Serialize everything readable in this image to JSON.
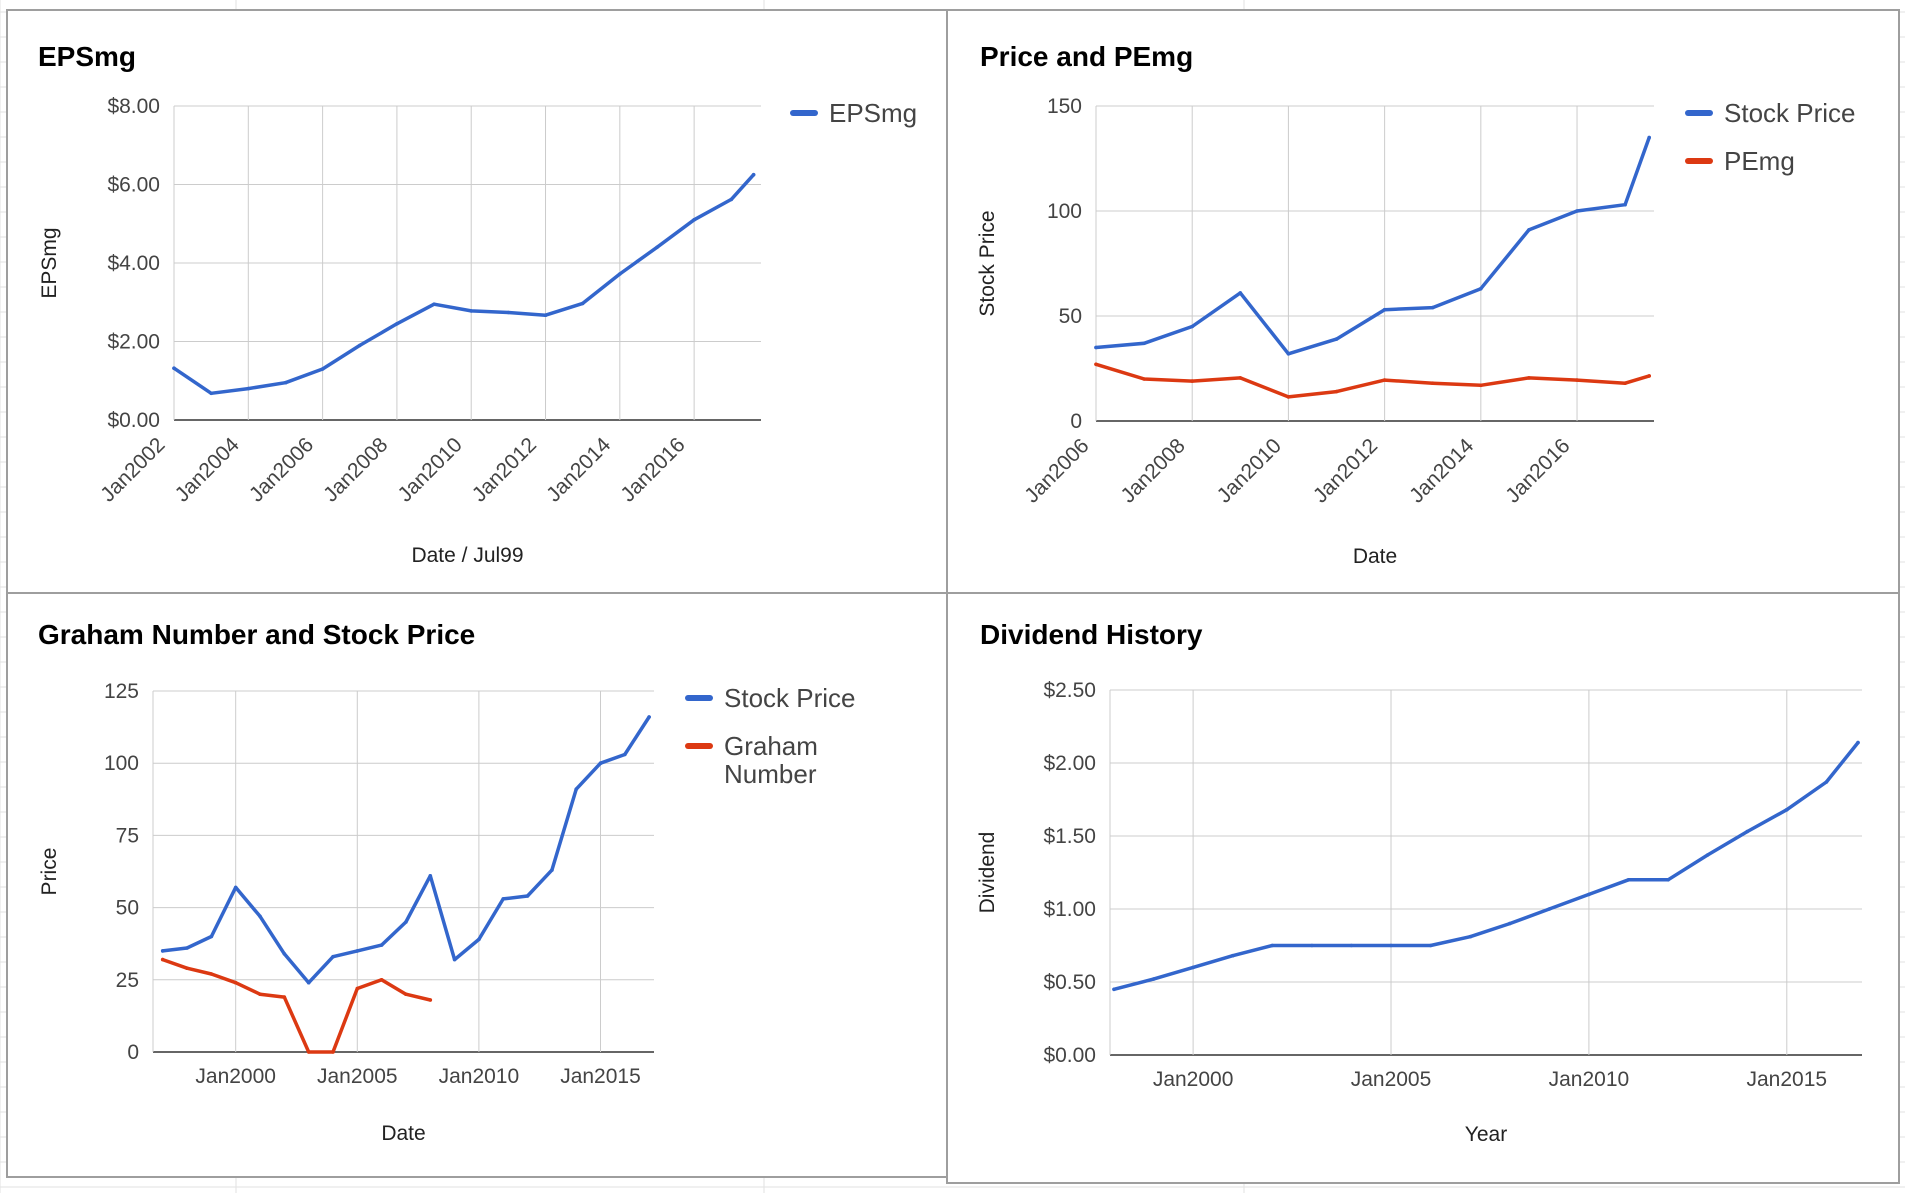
{
  "colors": {
    "blue": "#3366cc",
    "red": "#dc3912",
    "grid": "#cccccc"
  },
  "chart_data": [
    {
      "type": "line",
      "title": "EPSmg",
      "xlabel": "Date / Jul99",
      "ylabel": "EPSmg",
      "x_ticks": [
        "Jan2002",
        "Jan2004",
        "Jan2006",
        "Jan2008",
        "Jan2010",
        "Jan2012",
        "Jan2014",
        "Jan2016"
      ],
      "y_ticks": [
        "$0.00",
        "$2.00",
        "$4.00",
        "$6.00",
        "$8.00"
      ],
      "ylim": [
        0,
        8
      ],
      "xlim": [
        2002,
        2017.8
      ],
      "grid": true,
      "legend_position": "right",
      "series": [
        {
          "name": "EPSmg",
          "color": "#3366cc",
          "x": [
            2002,
            2003,
            2004,
            2005,
            2006,
            2007,
            2008,
            2009,
            2010,
            2011,
            2012,
            2013,
            2014,
            2015,
            2016,
            2017,
            2017.6
          ],
          "values": [
            1.32,
            0.68,
            0.8,
            0.95,
            1.3,
            1.9,
            2.45,
            2.95,
            2.78,
            2.74,
            2.67,
            2.97,
            3.72,
            4.4,
            5.1,
            5.62,
            6.25
          ]
        }
      ]
    },
    {
      "type": "line",
      "title": "Price and PEmg",
      "xlabel": "Date",
      "ylabel": "Stock Price",
      "x_ticks": [
        "Jan2006",
        "Jan2008",
        "Jan2010",
        "Jan2012",
        "Jan2014",
        "Jan2016"
      ],
      "y_ticks": [
        "0",
        "50",
        "100",
        "150"
      ],
      "ylim": [
        0,
        150
      ],
      "xlim": [
        2006,
        2017.6
      ],
      "grid": true,
      "legend_position": "right",
      "series": [
        {
          "name": "Stock Price",
          "color": "#3366cc",
          "x": [
            2006,
            2007,
            2008,
            2009,
            2010,
            2011,
            2012,
            2013,
            2014,
            2015,
            2016,
            2017,
            2017.5
          ],
          "values": [
            35,
            37,
            45,
            61,
            32,
            39,
            53,
            54,
            63,
            91,
            100,
            103,
            135
          ]
        },
        {
          "name": "PEmg",
          "color": "#dc3912",
          "x": [
            2006,
            2007,
            2008,
            2009,
            2010,
            2011,
            2012,
            2013,
            2014,
            2015,
            2016,
            2017,
            2017.5
          ],
          "values": [
            27,
            20,
            19,
            20.5,
            11.5,
            14,
            19.5,
            18,
            17,
            20.5,
            19.5,
            18,
            21.5
          ]
        }
      ]
    },
    {
      "type": "line",
      "title": "Graham Number and Stock Price",
      "xlabel": "Date",
      "ylabel": "Price",
      "x_ticks": [
        "Jan2000",
        "Jan2005",
        "Jan2010",
        "Jan2015"
      ],
      "y_ticks": [
        "0",
        "25",
        "50",
        "75",
        "100",
        "125"
      ],
      "ylim": [
        0,
        125
      ],
      "xlim": [
        1996.6,
        2017.2
      ],
      "grid": true,
      "legend_position": "right",
      "series": [
        {
          "name": "Stock Price",
          "color": "#3366cc",
          "x": [
            1997,
            1998,
            1999,
            2000,
            2001,
            2002,
            2003,
            2004,
            2005,
            2006,
            2007,
            2008,
            2009,
            2010,
            2011,
            2012,
            2013,
            2014,
            2015,
            2016,
            2017
          ],
          "values": [
            35,
            36,
            40,
            57,
            47,
            34,
            24,
            33,
            35,
            37,
            45,
            61,
            32,
            39,
            53,
            54,
            63,
            91,
            100,
            103,
            116
          ]
        },
        {
          "name": "Graham Number",
          "color": "#dc3912",
          "x": [
            1997,
            1998,
            1999,
            2000,
            2001,
            2002,
            2003,
            2004,
            2005,
            2006,
            2007,
            2008
          ],
          "values": [
            32,
            29,
            27,
            24,
            20,
            19,
            0,
            0,
            22,
            25,
            20,
            18
          ]
        }
      ]
    },
    {
      "type": "line",
      "title": "Dividend History",
      "xlabel": "Year",
      "ylabel": "Dividend",
      "x_ticks": [
        "Jan2000",
        "Jan2005",
        "Jan2010",
        "Jan2015"
      ],
      "y_ticks": [
        "$0.00",
        "$0.50",
        "$1.00",
        "$1.50",
        "$2.00",
        "$2.50"
      ],
      "ylim": [
        0,
        2.5
      ],
      "xlim": [
        1997.9,
        2016.9
      ],
      "grid": true,
      "series": [
        {
          "name": "Dividend",
          "color": "#3366cc",
          "x": [
            1998,
            1999,
            2000,
            2001,
            2002,
            2003,
            2004,
            2005,
            2006,
            2007,
            2008,
            2009,
            2010,
            2011,
            2012,
            2013,
            2014,
            2015,
            2016,
            2016.8
          ],
          "values": [
            0.45,
            0.52,
            0.6,
            0.68,
            0.75,
            0.75,
            0.75,
            0.75,
            0.75,
            0.81,
            0.9,
            1.0,
            1.1,
            1.2,
            1.2,
            1.37,
            1.53,
            1.68,
            1.87,
            2.14
          ]
        }
      ]
    }
  ]
}
